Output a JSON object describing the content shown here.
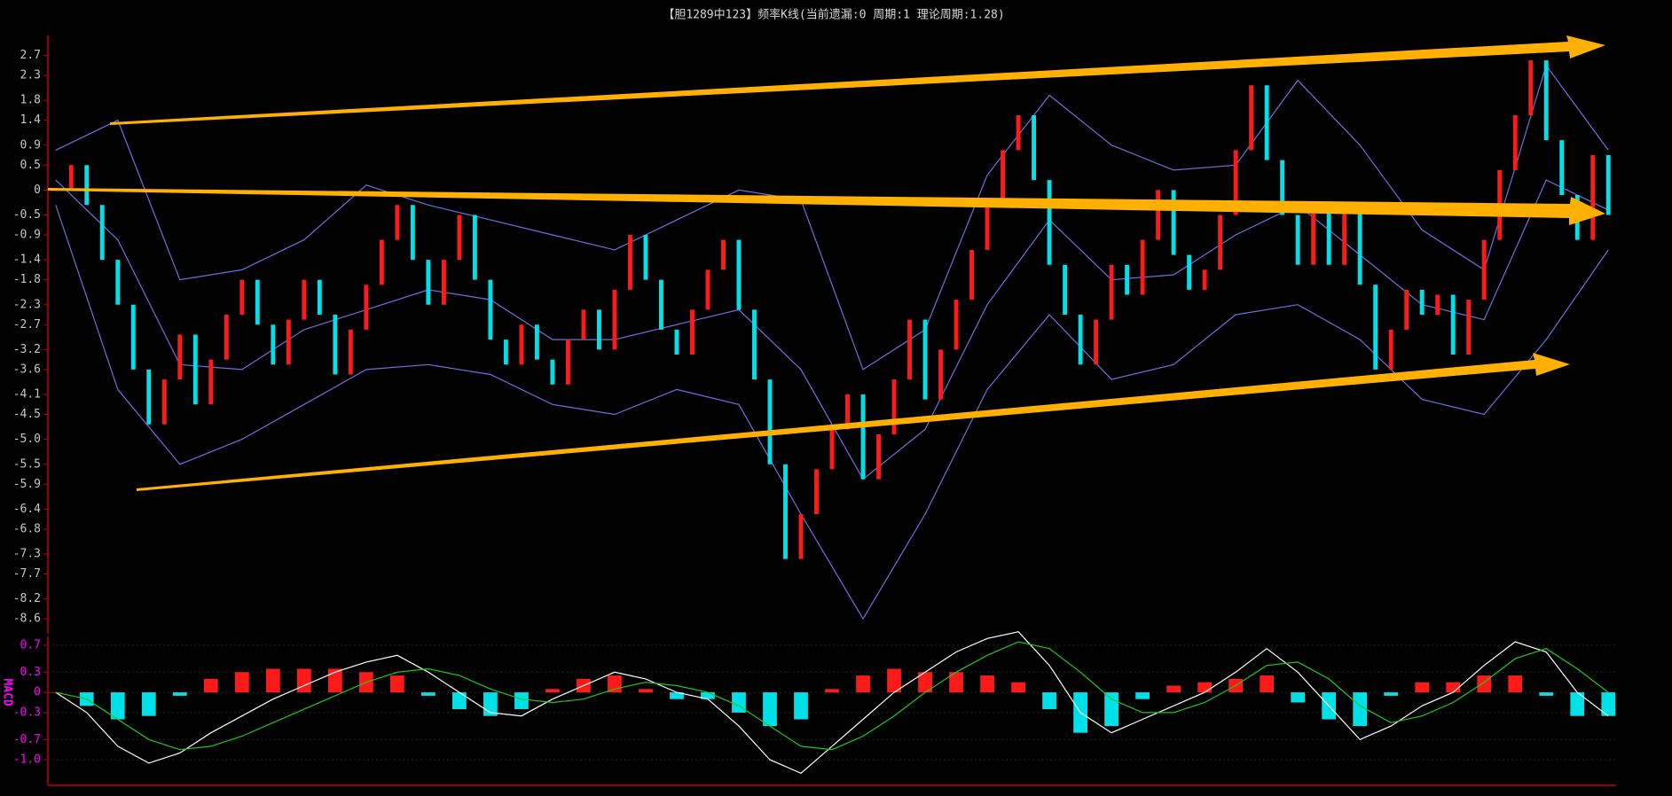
{
  "chart_data": [
    {
      "type": "candlestick",
      "title": "【胆1289中123】频率K线(当前遗漏:0 周期:1 理论周期:1.28)",
      "values": [
        0,
        0.5,
        -0.3,
        -1.4,
        -2.3,
        -3.6,
        -4.7,
        -3.8,
        -2.9,
        -4.3,
        -3.4,
        -2.5,
        -1.8,
        -2.7,
        -3.5,
        -2.6,
        -1.8,
        -2.5,
        -3.7,
        -2.8,
        -1.9,
        -1.0,
        -0.3,
        -1.4,
        -2.3,
        -1.4,
        -0.5,
        -1.8,
        -3.0,
        -3.5,
        -2.7,
        -3.4,
        -3.9,
        -3.0,
        -2.4,
        -3.2,
        -2.0,
        -0.9,
        -1.8,
        -2.8,
        -3.3,
        -2.4,
        -1.6,
        -1.0,
        -2.4,
        -3.8,
        -5.5,
        -7.4,
        -6.5,
        -5.6,
        -4.8,
        -4.1,
        -5.8,
        -4.9,
        -3.8,
        -2.6,
        -4.2,
        -3.2,
        -2.2,
        -1.2,
        -0.2,
        0.8,
        1.5,
        0.2,
        -1.5,
        -2.5,
        -3.5,
        -2.6,
        -1.5,
        -2.1,
        -1.0,
        0.0,
        -1.3,
        -2.0,
        -1.6,
        -0.5,
        0.8,
        2.1,
        0.6,
        -0.5,
        -1.5,
        -0.3,
        -1.5,
        -0.3,
        -1.9,
        -3.6,
        -2.8,
        -2.0,
        -2.5,
        -2.1,
        -3.3,
        -2.2,
        -1.0,
        0.4,
        1.5,
        2.6,
        1.0,
        -0.1,
        -1.0,
        0.7,
        -0.5
      ],
      "up_color": "#ff1a1a",
      "down_color": "#00e0e8",
      "band_x": [
        0,
        4,
        8,
        12,
        16,
        20,
        24,
        28,
        32,
        36,
        40,
        44,
        48,
        52,
        56,
        60,
        64,
        68,
        72,
        76,
        80,
        84,
        88,
        92,
        96,
        100
      ],
      "lines": [
        {
          "color": "#6f6fe0",
          "values": [
            0.8,
            1.4,
            -1.8,
            -1.6,
            -1.0,
            0.1,
            -0.3,
            -0.6,
            -0.9,
            -1.2,
            -0.6,
            0.0,
            -0.2,
            -3.6,
            -2.8,
            0.3,
            1.9,
            0.9,
            0.4,
            0.5,
            2.2,
            0.9,
            -0.8,
            -1.6,
            2.5,
            0.8
          ]
        },
        {
          "color": "#6f6fe0",
          "values": [
            0.2,
            -1.0,
            -3.5,
            -3.6,
            -2.8,
            -2.4,
            -2.0,
            -2.2,
            -3.0,
            -3.0,
            -2.7,
            -2.4,
            -3.6,
            -5.8,
            -4.8,
            -2.3,
            -0.6,
            -1.8,
            -1.7,
            -0.9,
            -0.3,
            -1.3,
            -2.3,
            -2.6,
            0.2,
            -0.4
          ]
        },
        {
          "color": "#6f6fe0",
          "values": [
            -0.3,
            -4.0,
            -5.5,
            -5.0,
            -4.3,
            -3.6,
            -3.5,
            -3.7,
            -4.3,
            -4.5,
            -4.0,
            -4.3,
            -6.5,
            -8.6,
            -6.5,
            -4.0,
            -2.5,
            -3.8,
            -3.5,
            -2.5,
            -2.3,
            -3.0,
            -4.2,
            -4.5,
            -3.0,
            -1.2
          ]
        }
      ],
      "ylim": [
        -8.9,
        3.1
      ],
      "yticks": [
        2.7,
        2.3,
        1.8,
        1.4,
        0.9,
        0.5,
        0,
        -0.5,
        -0.9,
        -1.4,
        -1.8,
        -2.3,
        -2.7,
        -3.2,
        -3.6,
        -4.1,
        -4.5,
        {
          "value": -5,
          "label": "-5.0"
        },
        -5.5,
        -5.9,
        -6.4,
        -6.8,
        -7.3,
        -7.7,
        -8.2,
        -8.6
      ],
      "grid": false
    },
    {
      "type": "macd",
      "ylabel": "MACD",
      "x": [
        0,
        2,
        4,
        6,
        8,
        10,
        12,
        14,
        16,
        18,
        20,
        22,
        24,
        26,
        28,
        30,
        32,
        34,
        36,
        38,
        40,
        42,
        44,
        46,
        48,
        50,
        52,
        54,
        56,
        58,
        60,
        62,
        64,
        66,
        68,
        70,
        72,
        74,
        76,
        78,
        80,
        82,
        84,
        86,
        88,
        90,
        92,
        94,
        96,
        98,
        100
      ],
      "histogram": [
        0,
        -0.2,
        -0.4,
        -0.35,
        -0.05,
        0.2,
        0.3,
        0.35,
        0.35,
        0.35,
        0.3,
        0.25,
        -0.05,
        -0.25,
        -0.35,
        -0.25,
        0.05,
        0.2,
        0.25,
        0.05,
        -0.1,
        -0.1,
        -0.3,
        -0.5,
        -0.4,
        0.05,
        0.25,
        0.35,
        0.3,
        0.3,
        0.25,
        0.15,
        -0.25,
        -0.6,
        -0.5,
        -0.1,
        0.1,
        0.15,
        0.2,
        0.25,
        -0.15,
        -0.4,
        -0.5,
        -0.05,
        0.15,
        0.15,
        0.25,
        0.25,
        -0.05,
        -0.35,
        -0.35
      ],
      "up_color": "#ff1a1a",
      "down_color": "#00e0e8",
      "lines": [
        {
          "color": "#ffffff",
          "values": [
            0.0,
            -0.3,
            -0.8,
            -1.05,
            -0.9,
            -0.6,
            -0.35,
            -0.1,
            0.1,
            0.3,
            0.45,
            0.55,
            0.3,
            0.0,
            -0.3,
            -0.35,
            -0.1,
            0.1,
            0.3,
            0.2,
            0.0,
            -0.1,
            -0.5,
            -1.0,
            -1.2,
            -0.8,
            -0.4,
            0.0,
            0.3,
            0.6,
            0.8,
            0.9,
            0.4,
            -0.3,
            -0.6,
            -0.4,
            -0.2,
            0.0,
            0.3,
            0.65,
            0.3,
            -0.2,
            -0.7,
            -0.5,
            -0.2,
            0.0,
            0.4,
            0.75,
            0.6,
            0.0,
            -0.35
          ]
        },
        {
          "color": "#1ec81e",
          "values": [
            0.0,
            -0.1,
            -0.4,
            -0.7,
            -0.85,
            -0.8,
            -0.65,
            -0.45,
            -0.25,
            -0.05,
            0.15,
            0.3,
            0.35,
            0.25,
            0.05,
            -0.1,
            -0.15,
            -0.1,
            0.05,
            0.15,
            0.1,
            0.0,
            -0.2,
            -0.5,
            -0.8,
            -0.85,
            -0.65,
            -0.35,
            0.0,
            0.3,
            0.55,
            0.75,
            0.65,
            0.3,
            -0.1,
            -0.3,
            -0.3,
            -0.15,
            0.1,
            0.4,
            0.45,
            0.2,
            -0.2,
            -0.45,
            -0.35,
            -0.15,
            0.15,
            0.5,
            0.65,
            0.35,
            0.0
          ]
        }
      ],
      "ylim": [
        -1.38,
        0.83
      ],
      "yticks": [
        0.7,
        0.3,
        0,
        -0.3,
        -0.7,
        {
          "value": -1,
          "label": "-1.0"
        }
      ],
      "grid": true
    }
  ]
}
